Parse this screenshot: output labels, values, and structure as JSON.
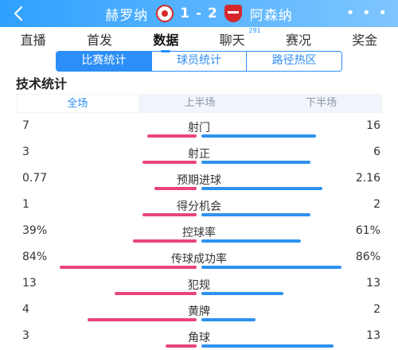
{
  "header": {
    "back_icon": "chevron-left-icon",
    "home_team": "赫罗纳",
    "away_team": "阿森纳",
    "score": "1 - 2",
    "more": "• • •"
  },
  "tabs": [
    {
      "label": "直播"
    },
    {
      "label": "首发"
    },
    {
      "label": "数据",
      "active": true
    },
    {
      "label": "聊天",
      "badge": "291"
    },
    {
      "label": "赛况"
    },
    {
      "label": "奖金"
    }
  ],
  "segments": [
    "比赛统计",
    "球员统计",
    "路径热区"
  ],
  "section_title": "技术统计",
  "periods": [
    "全场",
    "上半场",
    "下半场"
  ],
  "colors": {
    "home": "#e8457a",
    "away": "#2d92f0",
    "accent": "#2c8ef8"
  },
  "stats": [
    {
      "label": "射门",
      "home": "7",
      "away": "16",
      "home_fraction": 0.3,
      "away_fraction": 0.7
    },
    {
      "label": "射正",
      "home": "3",
      "away": "6",
      "home_fraction": 0.33,
      "away_fraction": 0.67
    },
    {
      "label": "预期进球",
      "home": "0.77",
      "away": "2.16",
      "home_fraction": 0.26,
      "away_fraction": 0.74
    },
    {
      "label": "得分机会",
      "home": "1",
      "away": "2",
      "home_fraction": 0.33,
      "away_fraction": 0.67
    },
    {
      "label": "控球率",
      "home": "39%",
      "away": "61%",
      "home_fraction": 0.39,
      "away_fraction": 0.61
    },
    {
      "label": "传球成功率",
      "home": "84%",
      "away": "86%",
      "home_fraction": 0.84,
      "away_fraction": 0.86
    },
    {
      "label": "犯规",
      "home": "13",
      "away": "13",
      "home_fraction": 0.5,
      "away_fraction": 0.5
    },
    {
      "label": "黄牌",
      "home": "4",
      "away": "2",
      "home_fraction": 0.67,
      "away_fraction": 0.33
    },
    {
      "label": "角球",
      "home": "3",
      "away": "13",
      "home_fraction": 0.19,
      "away_fraction": 0.81
    }
  ]
}
